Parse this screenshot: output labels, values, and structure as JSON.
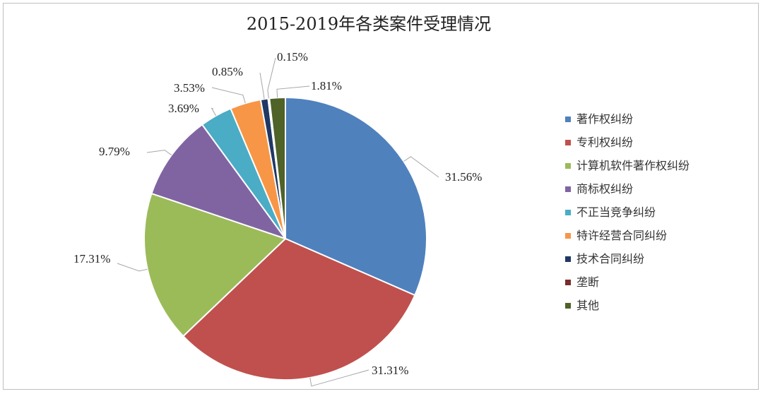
{
  "chart_data": {
    "type": "pie",
    "title": "2015-2019年各类案件受理情况",
    "legend_position": "right",
    "slices": [
      {
        "name": "著作权纠纷",
        "value": 31.56,
        "label": "31.56%",
        "color": "#4F81BD"
      },
      {
        "name": "专利权纠纷",
        "value": 31.31,
        "label": "31.31%",
        "color": "#C0504D"
      },
      {
        "name": "计算机软件著作权纠纷",
        "value": 17.31,
        "label": "17.31%",
        "color": "#9BBB59"
      },
      {
        "name": "商标权纠纷",
        "value": 9.79,
        "label": "9.79%",
        "color": "#8064A2"
      },
      {
        "name": "不正当竞争纠纷",
        "value": 3.69,
        "label": "3.69%",
        "color": "#4BACC6"
      },
      {
        "name": "特许经营合同纠纷",
        "value": 3.53,
        "label": "3.53%",
        "color": "#F79646"
      },
      {
        "name": "技术合同纠纷",
        "value": 0.85,
        "label": "0.85%",
        "color": "#1F3864"
      },
      {
        "name": "垄断",
        "value": 0.15,
        "label": "0.15%",
        "color": "#7B2C2C"
      },
      {
        "name": "其他",
        "value": 1.81,
        "label": "1.81%",
        "color": "#4F6228"
      }
    ]
  }
}
